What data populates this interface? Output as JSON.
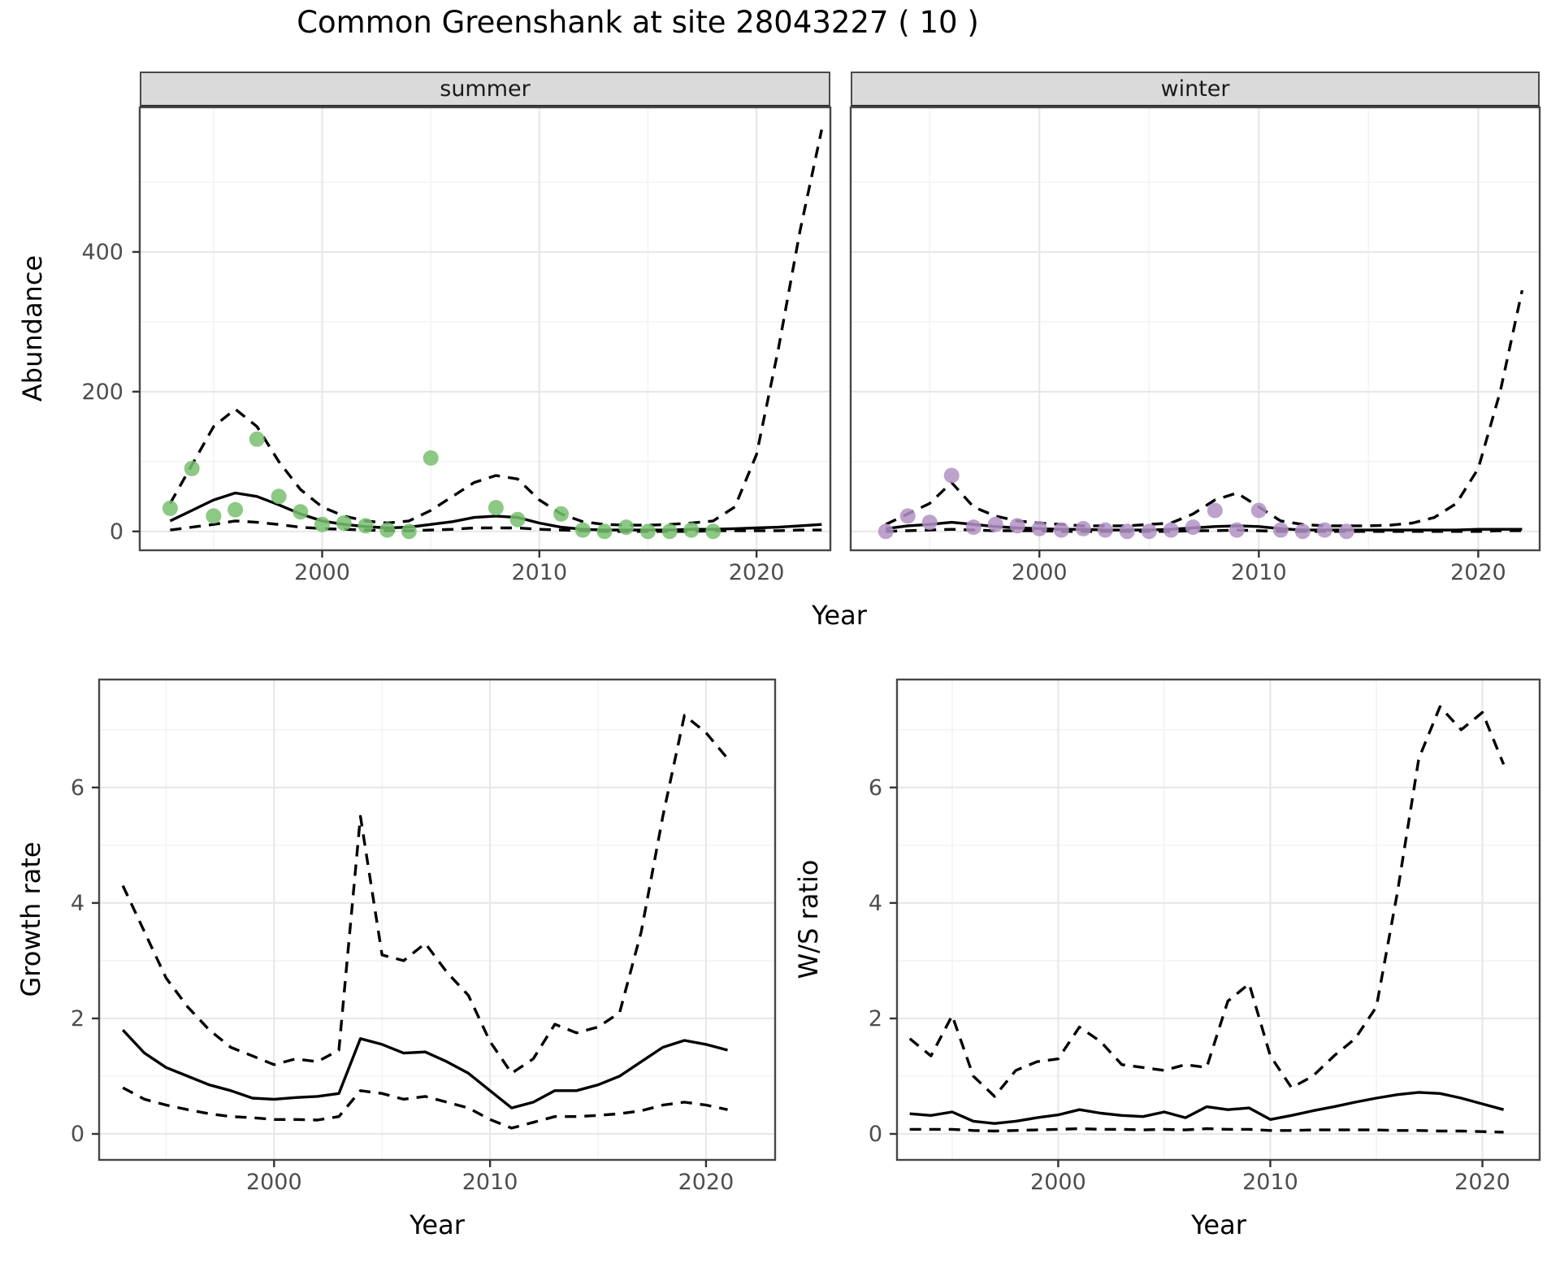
{
  "title": "Common Greenshank at site 28043227 ( 10 )",
  "abundance_row": {
    "ylabel": "Abundance",
    "xlabel": "Year",
    "facets": [
      "summer",
      "winter"
    ]
  },
  "growth_panel": {
    "ylabel": "Growth rate",
    "xlabel": "Year"
  },
  "ws_panel": {
    "ylabel": "W/S ratio",
    "xlabel": "Year"
  },
  "styles": {
    "point_green": "#77C06E",
    "point_purple": "#B292C4",
    "line_color": "#000000",
    "strip_bg": "#DADADA",
    "grid_major": "#E8E8E8",
    "grid_minor": "#F4F4F4",
    "panel_border": "#474747",
    "tick_text": "#4D4D4D"
  },
  "chart_data": [
    {
      "id": "abundance_summer",
      "type": "scatter",
      "facet": "summer",
      "xlabel": "Year",
      "ylabel": "Abundance",
      "xlim": [
        1991.6,
        2023.4
      ],
      "ylim": [
        -27,
        607
      ],
      "xticks": [
        2000,
        2010,
        2020
      ],
      "xticks_minor": [
        1995,
        2005,
        2015
      ],
      "yticks": [
        0,
        200,
        400
      ],
      "yticks_minor": [
        100,
        300,
        500
      ],
      "grid": true,
      "legend": "none",
      "points": {
        "name": "summer-counts",
        "x": [
          1993,
          1994,
          1995,
          1996,
          1997,
          1998,
          1999,
          2000,
          2001,
          2002,
          2003,
          2004,
          2005,
          2008,
          2009,
          2011,
          2012,
          2013,
          2014,
          2015,
          2016,
          2017,
          2018
        ],
        "y": [
          33,
          90,
          22,
          31,
          132,
          50,
          28,
          10,
          12,
          8,
          2,
          0,
          105,
          34,
          17,
          25,
          2,
          0,
          6,
          0,
          0,
          2,
          0
        ]
      },
      "series": [
        {
          "name": "fit",
          "style": "solid",
          "x": [
            1993,
            1994,
            1995,
            1996,
            1997,
            1998,
            1999,
            2000,
            2001,
            2002,
            2003,
            2004,
            2005,
            2006,
            2007,
            2008,
            2009,
            2010,
            2011,
            2012,
            2013,
            2014,
            2015,
            2016,
            2017,
            2018,
            2019,
            2020,
            2021,
            2022,
            2023
          ],
          "y": [
            15,
            30,
            45,
            55,
            50,
            38,
            25,
            15,
            10,
            7,
            5,
            6,
            10,
            14,
            20,
            22,
            20,
            12,
            6,
            3,
            2,
            2,
            2,
            2,
            3,
            3,
            4,
            5,
            6,
            8,
            10
          ]
        },
        {
          "name": "upper-ci",
          "style": "dashed",
          "x": [
            1993,
            1994,
            1995,
            1996,
            1997,
            1998,
            1999,
            2000,
            2001,
            2002,
            2003,
            2004,
            2005,
            2006,
            2007,
            2008,
            2009,
            2010,
            2011,
            2012,
            2013,
            2014,
            2015,
            2016,
            2017,
            2018,
            2019,
            2020,
            2021,
            2022,
            2023
          ],
          "y": [
            40,
            95,
            150,
            175,
            150,
            100,
            60,
            35,
            22,
            15,
            12,
            15,
            30,
            50,
            70,
            80,
            75,
            45,
            25,
            14,
            10,
            9,
            9,
            10,
            12,
            15,
            35,
            110,
            260,
            430,
            575
          ]
        },
        {
          "name": "lower-ci",
          "style": "dashed",
          "x": [
            1993,
            1994,
            1995,
            1996,
            1997,
            1998,
            1999,
            2000,
            2001,
            2002,
            2003,
            2004,
            2005,
            2006,
            2007,
            2008,
            2009,
            2010,
            2011,
            2012,
            2013,
            2014,
            2015,
            2016,
            2017,
            2018,
            2019,
            2020,
            2021,
            2022,
            2023
          ],
          "y": [
            2,
            6,
            10,
            15,
            13,
            10,
            6,
            4,
            3,
            2,
            1,
            1,
            2,
            3,
            5,
            5,
            5,
            3,
            2,
            1,
            0,
            0,
            0,
            0,
            0,
            1,
            1,
            1,
            1,
            2,
            2
          ]
        }
      ]
    },
    {
      "id": "abundance_winter",
      "type": "scatter",
      "facet": "winter",
      "xlabel": "Year",
      "ylabel": "Abundance",
      "xlim": [
        1991.4,
        2022.8
      ],
      "ylim": [
        -27,
        607
      ],
      "xticks": [
        2000,
        2010,
        2020
      ],
      "xticks_minor": [
        1995,
        2005,
        2015
      ],
      "yticks": [
        0,
        200,
        400
      ],
      "yticks_minor": [
        100,
        300,
        500
      ],
      "grid": true,
      "legend": "none",
      "points": {
        "name": "winter-counts",
        "x": [
          1993,
          1994,
          1995,
          1996,
          1997,
          1998,
          1999,
          2000,
          2001,
          2002,
          2003,
          2004,
          2005,
          2006,
          2007,
          2008,
          2009,
          2010,
          2011,
          2012,
          2013,
          2014
        ],
        "y": [
          0,
          22,
          13,
          80,
          6,
          10,
          8,
          4,
          2,
          4,
          2,
          0,
          0,
          2,
          6,
          30,
          2,
          30,
          2,
          0,
          2,
          0
        ]
      },
      "series": [
        {
          "name": "fit",
          "style": "solid",
          "x": [
            1993,
            1994,
            1995,
            1996,
            1997,
            1998,
            1999,
            2000,
            2001,
            2002,
            2003,
            2004,
            2005,
            2006,
            2007,
            2008,
            2009,
            2010,
            2011,
            2012,
            2013,
            2014,
            2015,
            2016,
            2017,
            2018,
            2019,
            2020,
            2021,
            2022
          ],
          "y": [
            4,
            8,
            10,
            13,
            10,
            7,
            5,
            4,
            3,
            3,
            2,
            2,
            2,
            3,
            5,
            7,
            8,
            7,
            4,
            2,
            2,
            2,
            2,
            2,
            2,
            2,
            2,
            3,
            3,
            3
          ]
        },
        {
          "name": "upper-ci",
          "style": "dashed",
          "x": [
            1993,
            1994,
            1995,
            1996,
            1997,
            1998,
            1999,
            2000,
            2001,
            2002,
            2003,
            2004,
            2005,
            2006,
            2007,
            2008,
            2009,
            2010,
            2011,
            2012,
            2013,
            2014,
            2015,
            2016,
            2017,
            2018,
            2019,
            2020,
            2021,
            2022
          ],
          "y": [
            10,
            25,
            40,
            70,
            35,
            22,
            15,
            12,
            10,
            8,
            8,
            8,
            10,
            12,
            25,
            45,
            55,
            35,
            15,
            10,
            8,
            8,
            8,
            9,
            12,
            20,
            40,
            90,
            200,
            345
          ]
        },
        {
          "name": "lower-ci",
          "style": "dashed",
          "x": [
            1993,
            1994,
            1995,
            1996,
            1997,
            1998,
            1999,
            2000,
            2001,
            2002,
            2003,
            2004,
            2005,
            2006,
            2007,
            2008,
            2009,
            2010,
            2011,
            2012,
            2013,
            2014,
            2015,
            2016,
            2017,
            2018,
            2019,
            2020,
            2021,
            2022
          ],
          "y": [
            0,
            1,
            2,
            3,
            2,
            1,
            1,
            1,
            0,
            0,
            0,
            0,
            0,
            0,
            1,
            1,
            2,
            1,
            0,
            0,
            0,
            0,
            0,
            0,
            0,
            0,
            0,
            0,
            1,
            1
          ]
        }
      ]
    },
    {
      "id": "growth_rate",
      "type": "line",
      "xlabel": "Year",
      "ylabel": "Growth rate",
      "xlim": [
        1991.9,
        2023.2
      ],
      "ylim": [
        -0.45,
        7.87
      ],
      "xticks": [
        2000,
        2010,
        2020
      ],
      "xticks_minor": [
        1995,
        2005,
        2015
      ],
      "yticks": [
        0,
        2,
        4,
        6
      ],
      "yticks_minor": [
        1,
        3,
        5,
        7
      ],
      "grid": true,
      "legend": "none",
      "series": [
        {
          "name": "fit",
          "style": "solid",
          "x": [
            1993,
            1994,
            1995,
            1996,
            1997,
            1998,
            1999,
            2000,
            2001,
            2002,
            2003,
            2004,
            2005,
            2006,
            2007,
            2008,
            2009,
            2010,
            2011,
            2012,
            2013,
            2014,
            2015,
            2016,
            2017,
            2018,
            2019,
            2020,
            2021
          ],
          "y": [
            1.8,
            1.4,
            1.15,
            1.0,
            0.85,
            0.75,
            0.62,
            0.6,
            0.63,
            0.65,
            0.7,
            1.65,
            1.55,
            1.4,
            1.42,
            1.25,
            1.05,
            0.75,
            0.45,
            0.55,
            0.75,
            0.75,
            0.85,
            1.0,
            1.25,
            1.5,
            1.62,
            1.55,
            1.45
          ]
        },
        {
          "name": "upper-ci",
          "style": "dashed",
          "x": [
            1993,
            1994,
            1995,
            1996,
            1997,
            1998,
            1999,
            2000,
            2001,
            2002,
            2003,
            2004,
            2005,
            2006,
            2007,
            2008,
            2009,
            2010,
            2011,
            2012,
            2013,
            2014,
            2015,
            2016,
            2017,
            2018,
            2019,
            2020,
            2021
          ],
          "y": [
            4.3,
            3.5,
            2.7,
            2.2,
            1.8,
            1.5,
            1.35,
            1.2,
            1.3,
            1.25,
            1.45,
            5.5,
            3.1,
            3.0,
            3.3,
            2.8,
            2.4,
            1.6,
            1.05,
            1.3,
            1.9,
            1.75,
            1.85,
            2.1,
            3.5,
            5.5,
            7.25,
            6.95,
            6.5
          ]
        },
        {
          "name": "lower-ci",
          "style": "dashed",
          "x": [
            1993,
            1994,
            1995,
            1996,
            1997,
            1998,
            1999,
            2000,
            2001,
            2002,
            2003,
            2004,
            2005,
            2006,
            2007,
            2008,
            2009,
            2010,
            2011,
            2012,
            2013,
            2014,
            2015,
            2016,
            2017,
            2018,
            2019,
            2020,
            2021
          ],
          "y": [
            0.8,
            0.6,
            0.5,
            0.42,
            0.35,
            0.3,
            0.28,
            0.25,
            0.25,
            0.24,
            0.3,
            0.75,
            0.7,
            0.6,
            0.65,
            0.55,
            0.45,
            0.25,
            0.1,
            0.2,
            0.3,
            0.3,
            0.32,
            0.35,
            0.4,
            0.5,
            0.55,
            0.5,
            0.42
          ]
        }
      ]
    },
    {
      "id": "ws_ratio",
      "type": "line",
      "xlabel": "Year",
      "ylabel": "W/S ratio",
      "xlim": [
        1992.4,
        2022.7
      ],
      "ylim": [
        -0.45,
        7.87
      ],
      "xticks": [
        2000,
        2010,
        2020
      ],
      "xticks_minor": [
        1995,
        2005,
        2015
      ],
      "yticks": [
        0,
        2,
        4,
        6
      ],
      "yticks_minor": [
        1,
        3,
        5,
        7
      ],
      "grid": true,
      "legend": "none",
      "series": [
        {
          "name": "fit",
          "style": "solid",
          "x": [
            1993,
            1994,
            1995,
            1996,
            1997,
            1998,
            1999,
            2000,
            2001,
            2002,
            2003,
            2004,
            2005,
            2006,
            2007,
            2008,
            2009,
            2010,
            2011,
            2012,
            2013,
            2014,
            2015,
            2016,
            2017,
            2018,
            2019,
            2020,
            2021
          ],
          "y": [
            0.35,
            0.32,
            0.38,
            0.22,
            0.18,
            0.22,
            0.28,
            0.33,
            0.42,
            0.36,
            0.32,
            0.3,
            0.38,
            0.28,
            0.47,
            0.42,
            0.45,
            0.25,
            0.32,
            0.4,
            0.47,
            0.55,
            0.62,
            0.68,
            0.72,
            0.7,
            0.62,
            0.52,
            0.42
          ]
        },
        {
          "name": "upper-ci",
          "style": "dashed",
          "x": [
            1993,
            1994,
            1995,
            1996,
            1997,
            1998,
            1999,
            2000,
            2001,
            2002,
            2003,
            2004,
            2005,
            2006,
            2007,
            2008,
            2009,
            2010,
            2011,
            2012,
            2013,
            2014,
            2015,
            2016,
            2017,
            2018,
            2019,
            2020,
            2021
          ],
          "y": [
            1.65,
            1.35,
            2.05,
            1.0,
            0.65,
            1.1,
            1.25,
            1.3,
            1.85,
            1.6,
            1.2,
            1.15,
            1.1,
            1.2,
            1.15,
            2.3,
            2.6,
            1.35,
            0.8,
            1.0,
            1.35,
            1.65,
            2.2,
            4.2,
            6.5,
            7.4,
            7.0,
            7.3,
            6.4
          ]
        },
        {
          "name": "lower-ci",
          "style": "dashed",
          "x": [
            1993,
            1994,
            1995,
            1996,
            1997,
            1998,
            1999,
            2000,
            2001,
            2002,
            2003,
            2004,
            2005,
            2006,
            2007,
            2008,
            2009,
            2010,
            2011,
            2012,
            2013,
            2014,
            2015,
            2016,
            2017,
            2018,
            2019,
            2020,
            2021
          ],
          "y": [
            0.08,
            0.08,
            0.08,
            0.06,
            0.05,
            0.06,
            0.07,
            0.08,
            0.09,
            0.08,
            0.08,
            0.07,
            0.08,
            0.07,
            0.09,
            0.08,
            0.08,
            0.06,
            0.06,
            0.07,
            0.07,
            0.07,
            0.07,
            0.06,
            0.06,
            0.05,
            0.05,
            0.04,
            0.03
          ]
        }
      ]
    }
  ]
}
